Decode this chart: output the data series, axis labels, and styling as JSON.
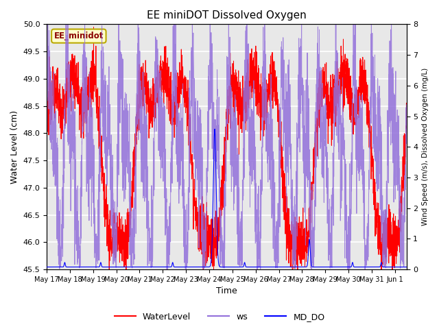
{
  "title": "EE miniDOT Dissolved Oxygen",
  "xlabel": "Time",
  "ylabel_left": "Water Level (cm)",
  "ylabel_right": "Wind Speed (m/s), Dissolved Oxygen (mg/L)",
  "legend_label": "EE_minidot",
  "ylim_left": [
    45.5,
    50.0
  ],
  "ylim_right": [
    0.0,
    8.0
  ],
  "series": [
    "WaterLevel",
    "ws",
    "MD_DO"
  ],
  "colors": [
    "red",
    "mediumpurple",
    "blue"
  ],
  "background_color": "#e8e8e8",
  "grid_color": "white",
  "legend_box_color": "#ffffcc",
  "legend_box_edge": "#bbaa00"
}
